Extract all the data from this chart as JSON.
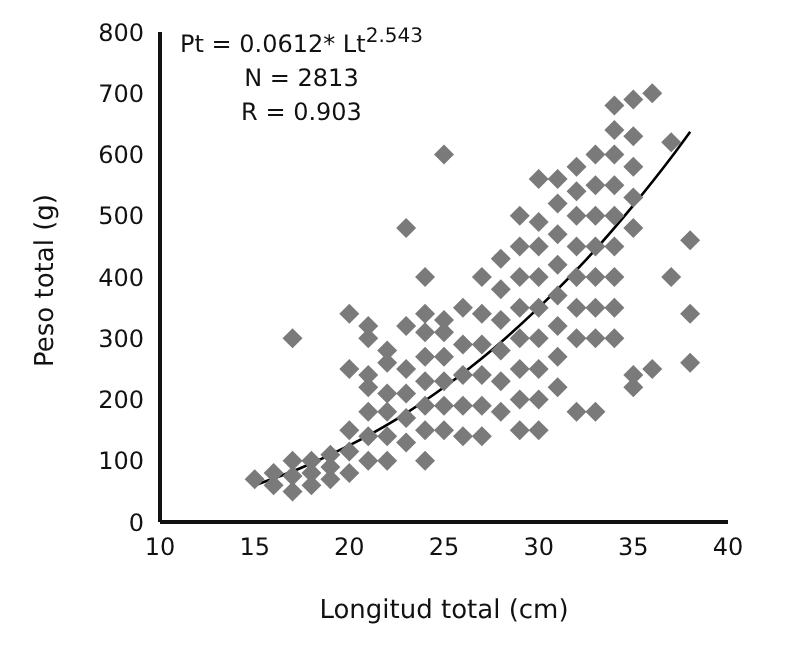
{
  "chart_data": {
    "type": "scatter",
    "xlabel": "Longitud total (cm)",
    "ylabel": "Peso total (g)",
    "annotations": [
      "Pt = 0.0612* Lt$^{2.543}$",
      "N = 2813",
      "R = 0.903"
    ],
    "xlim": [
      10,
      40
    ],
    "xticks": [
      10,
      15,
      20,
      25,
      30,
      35,
      40
    ],
    "ylim": [
      0,
      800
    ],
    "yticks": [
      0,
      100,
      200,
      300,
      400,
      500,
      600,
      700,
      800
    ],
    "series": [
      {
        "color": "#7a7a7a",
        "marker": "diamond",
        "x": [
          15,
          16,
          16,
          17,
          17,
          17,
          17,
          18,
          18,
          18,
          19,
          19,
          19,
          20,
          20,
          20,
          20,
          20,
          21,
          21,
          21,
          21,
          21,
          21,
          21,
          22,
          22,
          22,
          22,
          22,
          22,
          23,
          23,
          23,
          23,
          23,
          23,
          24,
          24,
          24,
          24,
          24,
          24,
          24,
          24,
          25,
          25,
          25,
          25,
          25,
          25,
          25,
          26,
          26,
          26,
          26,
          26,
          27,
          27,
          27,
          27,
          27,
          27,
          28,
          28,
          28,
          28,
          28,
          28,
          29,
          29,
          29,
          29,
          29,
          29,
          29,
          29,
          30,
          30,
          30,
          30,
          30,
          30,
          30,
          30,
          30,
          31,
          31,
          31,
          31,
          31,
          31,
          31,
          31,
          32,
          32,
          32,
          32,
          32,
          32,
          32,
          32,
          33,
          33,
          33,
          33,
          33,
          33,
          33,
          33,
          34,
          34,
          34,
          34,
          34,
          34,
          34,
          34,
          34,
          35,
          35,
          35,
          35,
          35,
          35,
          35,
          36,
          36,
          37,
          37,
          38,
          38,
          38
        ],
        "values": [
          70,
          60,
          80,
          50,
          75,
          100,
          300,
          60,
          80,
          100,
          70,
          90,
          110,
          80,
          115,
          150,
          250,
          340,
          100,
          140,
          180,
          220,
          240,
          300,
          320,
          100,
          140,
          180,
          210,
          260,
          280,
          130,
          170,
          210,
          250,
          320,
          480,
          100,
          150,
          190,
          230,
          270,
          310,
          340,
          400,
          150,
          190,
          230,
          270,
          310,
          330,
          600,
          140,
          190,
          240,
          290,
          350,
          140,
          190,
          240,
          290,
          340,
          400,
          180,
          230,
          280,
          330,
          380,
          430,
          150,
          200,
          250,
          300,
          350,
          400,
          450,
          500,
          150,
          200,
          250,
          300,
          350,
          400,
          450,
          490,
          560,
          220,
          270,
          320,
          370,
          420,
          470,
          520,
          560,
          180,
          300,
          350,
          400,
          450,
          500,
          540,
          580,
          180,
          300,
          350,
          400,
          450,
          500,
          550,
          600,
          300,
          350,
          400,
          450,
          500,
          550,
          600,
          640,
          680,
          220,
          240,
          480,
          530,
          580,
          630,
          690,
          250,
          700,
          400,
          620,
          260,
          340,
          460
        ]
      },
      {
        "type": "line",
        "color": "#000000",
        "marker": "none",
        "line_style": "solid",
        "x": [
          15,
          17.5,
          20,
          22.5,
          25,
          27.5,
          30,
          32.5,
          35,
          37,
          38
        ],
        "values": [
          60,
          89,
          125,
          168,
          220,
          280,
          350,
          428,
          517,
          595,
          637
        ]
      }
    ]
  }
}
